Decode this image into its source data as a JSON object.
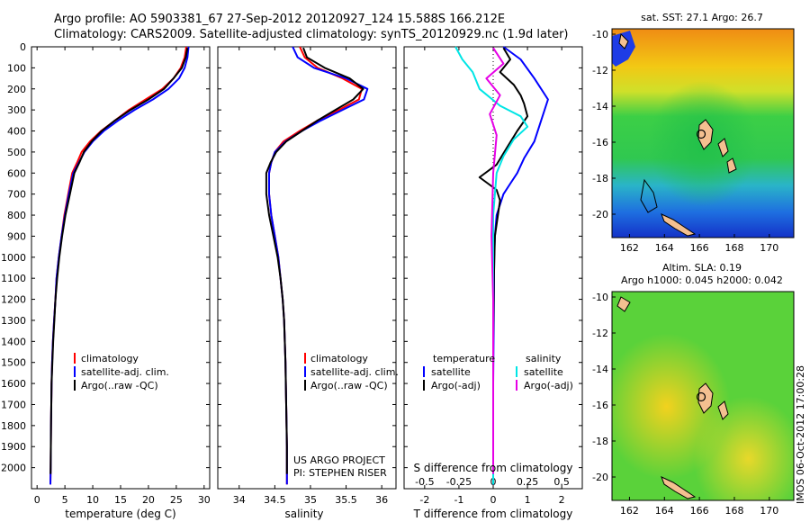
{
  "header": {
    "line1": "Argo profile: AO 5903381_67 27-Sep-2012 20120927_124 15.588S 166.212E",
    "line2": "Climatology: CARS2009. Satellite-adjusted climatology: synTS_20120929.nc (1.9d later)"
  },
  "colors": {
    "climatology": "#ff0000",
    "satellite": "#0000ff",
    "argo": "#000000",
    "s_satellite": "#00e5e5",
    "s_argo": "#e600e6"
  },
  "depth_axis": {
    "ylim": [
      0,
      2100
    ],
    "ticks": [
      "0",
      "100",
      "200",
      "300",
      "400",
      "500",
      "600",
      "700",
      "800",
      "900",
      "1000",
      "1100",
      "1200",
      "1300",
      "1400",
      "1500",
      "1600",
      "1700",
      "1800",
      "1900",
      "2000"
    ]
  },
  "chart_data": [
    {
      "type": "line",
      "id": "temperature",
      "xlabel": "temperature (deg C)",
      "xlim": [
        -1,
        31
      ],
      "xticks": [
        "0",
        "5",
        "10",
        "15",
        "20",
        "25",
        "30"
      ],
      "legend": [
        "climatology",
        "satellite-adj. clim.",
        "Argo(..raw -QC)"
      ],
      "series": [
        {
          "name": "climatology",
          "color": "#ff0000",
          "x": [
            26.8,
            26.5,
            25.8,
            24.5,
            22.5,
            19.5,
            16.5,
            14.0,
            11.5,
            9.5,
            8.0,
            7.2,
            6.3,
            5.6,
            4.9,
            4.4,
            3.9,
            3.5,
            3.3,
            3.05,
            2.85,
            2.7,
            2.6,
            2.5,
            2.45,
            2.4
          ],
          "y": [
            0,
            50,
            100,
            150,
            200,
            250,
            300,
            350,
            400,
            450,
            500,
            550,
            600,
            700,
            800,
            900,
            1000,
            1100,
            1200,
            1300,
            1400,
            1500,
            1600,
            1800,
            2000,
            2080
          ]
        },
        {
          "name": "satellite-adj. clim.",
          "color": "#0000ff",
          "x": [
            27.2,
            27.0,
            26.5,
            25.5,
            23.6,
            20.8,
            17.5,
            14.6,
            12.0,
            10.0,
            8.5,
            7.5,
            6.5,
            5.7,
            5.0,
            4.4,
            3.9,
            3.5,
            3.3,
            3.05,
            2.85,
            2.7,
            2.6,
            2.5,
            2.45,
            2.4
          ],
          "y": [
            0,
            50,
            100,
            150,
            200,
            250,
            300,
            350,
            400,
            450,
            500,
            550,
            600,
            700,
            800,
            900,
            1000,
            1100,
            1200,
            1300,
            1400,
            1500,
            1600,
            1800,
            2000,
            2080
          ]
        },
        {
          "name": "Argo(..raw -QC)",
          "color": "#000000",
          "x": [
            27.0,
            26.7,
            26.0,
            24.5,
            22.8,
            20.0,
            16.8,
            14.0,
            11.6,
            9.8,
            8.4,
            7.6,
            6.7,
            5.9,
            5.1,
            4.5,
            4.0,
            3.6,
            3.3,
            3.1,
            2.9,
            2.75,
            2.6,
            2.5,
            2.45,
            2.42
          ],
          "y": [
            5,
            50,
            100,
            150,
            200,
            250,
            300,
            350,
            400,
            450,
            500,
            550,
            600,
            700,
            800,
            900,
            1000,
            1100,
            1200,
            1300,
            1400,
            1500,
            1600,
            1800,
            2000,
            2030
          ]
        }
      ]
    },
    {
      "type": "line",
      "id": "salinity",
      "xlabel": "salinity",
      "xlim": [
        33.7,
        36.2
      ],
      "xticks": [
        "34",
        "34.5",
        "35",
        "35.5",
        "36"
      ],
      "legend": [
        "climatology",
        "satellite-adj. clim.",
        "Argo(..raw -QC)"
      ],
      "annotation_line1": "US ARGO PROJECT",
      "annotation_line2": "PI: STEPHEN RISER",
      "series": [
        {
          "name": "climatology",
          "color": "#ff0000",
          "x": [
            34.85,
            34.92,
            35.1,
            35.45,
            35.72,
            35.68,
            35.4,
            35.1,
            34.85,
            34.62,
            34.5,
            34.45,
            34.42,
            34.42,
            34.45,
            34.5,
            34.55,
            34.58,
            34.61,
            34.63,
            34.65,
            34.66,
            34.67,
            34.67
          ],
          "y": [
            0,
            50,
            100,
            150,
            200,
            250,
            300,
            350,
            400,
            450,
            500,
            550,
            600,
            700,
            800,
            900,
            1000,
            1100,
            1200,
            1300,
            1500,
            1700,
            1900,
            2080
          ]
        },
        {
          "name": "satellite-adj. clim.",
          "color": "#0000ff",
          "x": [
            34.75,
            34.82,
            35.05,
            35.5,
            35.8,
            35.75,
            35.45,
            35.15,
            34.88,
            34.65,
            34.5,
            34.45,
            34.42,
            34.42,
            34.45,
            34.5,
            34.55,
            34.58,
            34.61,
            34.63,
            34.65,
            34.66,
            34.67,
            34.67
          ],
          "y": [
            0,
            50,
            100,
            150,
            200,
            250,
            300,
            350,
            400,
            450,
            500,
            550,
            600,
            700,
            800,
            900,
            1000,
            1100,
            1200,
            1300,
            1500,
            1700,
            1900,
            2080
          ]
        },
        {
          "name": "Argo(..raw -QC)",
          "color": "#000000",
          "x": [
            34.9,
            34.95,
            35.2,
            35.55,
            35.74,
            35.6,
            35.35,
            35.1,
            34.88,
            34.66,
            34.52,
            34.44,
            34.38,
            34.38,
            34.42,
            34.48,
            34.54,
            34.58,
            34.61,
            34.63,
            34.65,
            34.66,
            34.67,
            34.67
          ],
          "y": [
            5,
            50,
            100,
            150,
            200,
            250,
            300,
            350,
            400,
            450,
            500,
            550,
            600,
            700,
            800,
            900,
            1000,
            1100,
            1200,
            1300,
            1500,
            1700,
            1900,
            2030
          ]
        }
      ]
    },
    {
      "type": "line",
      "id": "difference",
      "xlabel": "T difference from climatology",
      "xlabel_top": "S difference from climatology",
      "xlim": [
        -2.6,
        2.6
      ],
      "xticks": [
        "-2",
        "-1",
        "0",
        "1",
        "2"
      ],
      "sticks": [
        "-0.5",
        "-0.25",
        "0",
        "0.25",
        "0.5"
      ],
      "legend_temperature": [
        "temperature",
        "satellite",
        "Argo(-adj)"
      ],
      "legend_salinity": [
        "salinity",
        "satellite",
        "Argo(-adj)"
      ],
      "series": [
        {
          "name": "T satellite",
          "color": "#0000ff",
          "x": [
            0.3,
            0.8,
            1.2,
            1.6,
            1.4,
            1.2,
            0.9,
            0.7,
            0.5,
            0.3,
            0.1,
            0.05,
            0.03,
            0.02,
            0.01,
            0.0,
            0.0,
            0.0
          ],
          "y": [
            0,
            60,
            150,
            250,
            350,
            450,
            530,
            600,
            650,
            700,
            800,
            900,
            1000,
            1200,
            1400,
            1600,
            1800,
            2080
          ]
        },
        {
          "name": "T Argo(-adj)",
          "color": "#000000",
          "x": [
            0.3,
            0.5,
            0.2,
            0.6,
            0.8,
            0.9,
            1.0,
            0.7,
            0.4,
            0.1,
            -0.4,
            0.1,
            0.2,
            0.05,
            0.02,
            0.0,
            0.0,
            0.0
          ],
          "y": [
            5,
            60,
            120,
            180,
            230,
            270,
            330,
            400,
            480,
            560,
            620,
            680,
            730,
            900,
            1100,
            1400,
            1700,
            2030
          ]
        },
        {
          "name": "S satellite",
          "color": "#00e5e5",
          "x": [
            -1.1,
            -0.9,
            -0.6,
            -0.4,
            0.2,
            0.8,
            1.0,
            0.6,
            0.3,
            0.1,
            0.0,
            0.0,
            0.0,
            0.0,
            0.0
          ],
          "y": [
            0,
            60,
            120,
            200,
            280,
            330,
            380,
            440,
            520,
            600,
            800,
            1000,
            1400,
            1800,
            2080
          ]
        },
        {
          "name": "S Argo(-adj)",
          "color": "#e600e6",
          "x": [
            0.0,
            0.3,
            -0.2,
            0.2,
            -0.1,
            0.1,
            0.0,
            -0.05,
            0.0,
            0.0,
            0.0
          ],
          "y": [
            5,
            80,
            150,
            230,
            320,
            420,
            600,
            900,
            1200,
            1600,
            2030
          ]
        }
      ]
    }
  ],
  "maps": {
    "top": {
      "title": "sat. SST: 27.1  Argo: 26.7",
      "lat_ticks": [
        "-10",
        "-12",
        "-14",
        "-16",
        "-18",
        "-20"
      ],
      "lon_ticks": [
        "162",
        "164",
        "166",
        "168",
        "170"
      ]
    },
    "bottom": {
      "title1": "Altim. SLA: 0.19",
      "title2": "Argo h1000: 0.045 h2000: 0.042",
      "lat_ticks": [
        "-10",
        "-12",
        "-14",
        "-16",
        "-18",
        "-20"
      ],
      "lon_ticks": [
        "162",
        "164",
        "166",
        "168",
        "170"
      ]
    },
    "credit": "IMOS 06-Oct-2012 17:00:28"
  }
}
